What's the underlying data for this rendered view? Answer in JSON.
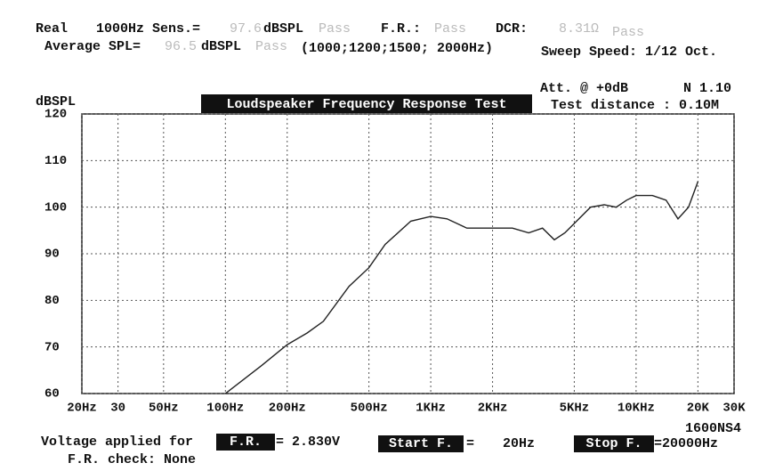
{
  "header": {
    "real": "Real",
    "sens": "1000Hz Sens.=",
    "sens_value": "97.6",
    "sens_unit": "dBSPL",
    "sens_result": "Pass",
    "fr": "F.R.:",
    "fr_result": "Pass",
    "dcr": "DCR:",
    "dcr_value": "8.31Ω",
    "dcr_result": "Pass",
    "avg": "Average SPL=",
    "avg_value": "96.5",
    "avg_unit": "dBSPL",
    "avg_result": "Pass",
    "avg_freqs": "(1000;1200;1500; 2000Hz)",
    "sweep": "Sweep Speed: 1/12 Oct.",
    "att": "Att. @  +0dB",
    "version": "N 1.10",
    "distance": "Test distance : 0.10M"
  },
  "chart_data": {
    "type": "line",
    "title": "Loudspeaker Frequency Response Test",
    "y_label": "dBSPL",
    "model": "1600NS4",
    "x_scale": "log",
    "xlim": [
      20,
      30000
    ],
    "ylim": [
      60,
      120
    ],
    "grid": true,
    "xticks": [
      {
        "value": 20,
        "label": "20Hz"
      },
      30,
      {
        "value": 50,
        "label": "50Hz"
      },
      {
        "value": 100,
        "label": "100Hz"
      },
      {
        "value": 200,
        "label": "200Hz"
      },
      {
        "value": 500,
        "label": "500Hz"
      },
      {
        "value": 1000,
        "label": "1KHz"
      },
      {
        "value": 2000,
        "label": "2KHz"
      },
      {
        "value": 5000,
        "label": "5KHz"
      },
      {
        "value": 10000,
        "label": "10KHz"
      },
      {
        "value": 20000,
        "label": "20K"
      },
      {
        "value": 30000,
        "label": "30K"
      }
    ],
    "yticks": [
      60,
      70,
      80,
      90,
      100,
      110,
      120
    ],
    "series": [
      {
        "color": "#222",
        "x": [
          100,
          150,
          200,
          250,
          300,
          400,
          500,
          600,
          800,
          1000,
          1200,
          1500,
          2000,
          2500,
          3000,
          3500,
          4000,
          4500,
          5000,
          6000,
          7000,
          8000,
          9000,
          10000,
          12000,
          14000,
          16000,
          18000,
          20000
        ],
        "values": [
          60,
          66,
          70.5,
          73,
          75.5,
          83,
          87,
          92,
          97,
          98,
          97.5,
          95.5,
          95.5,
          95.5,
          94.5,
          95.5,
          93,
          94.5,
          96.5,
          100,
          100.5,
          100,
          101.5,
          102.5,
          102.5,
          101.5,
          97.5,
          100,
          105.5
        ]
      }
    ]
  },
  "footer": {
    "voltage": "Voltage applied for",
    "fr": "F.R.",
    "voltage_value": "= 2.830V",
    "start": "Start F.",
    "start_eq": "=",
    "start_value": "20Hz",
    "stop": "Stop F.",
    "stop_value": "=20000Hz",
    "check": "F.R. check:  None"
  }
}
